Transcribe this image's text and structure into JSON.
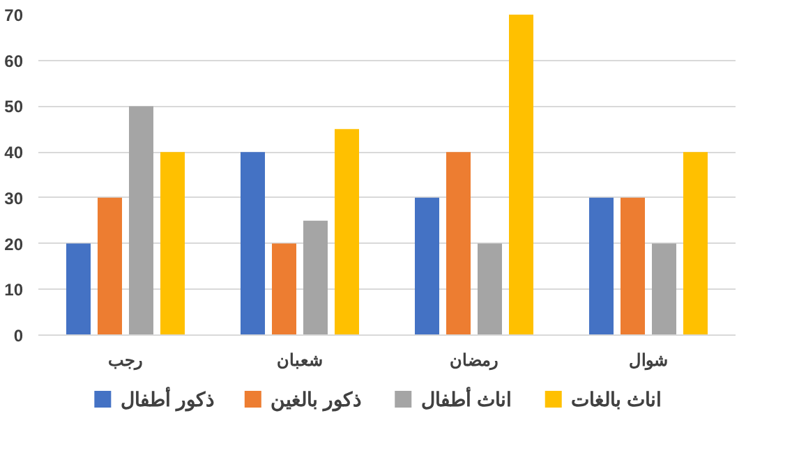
{
  "chart_data": {
    "type": "bar",
    "categories": [
      "رجب",
      "شعبان",
      "رمضان",
      "شوال"
    ],
    "series": [
      {
        "name": "ذكور أطفال",
        "color": "#4472c4",
        "values": [
          20,
          40,
          30,
          30
        ]
      },
      {
        "name": "ذكور بالغين",
        "color": "#ed7d31",
        "values": [
          30,
          20,
          40,
          30
        ]
      },
      {
        "name": "اناث أطفال",
        "color": "#a5a5a5",
        "values": [
          50,
          25,
          20,
          20
        ]
      },
      {
        "name": "اناث بالغات",
        "color": "#ffc000",
        "values": [
          40,
          45,
          70,
          40
        ]
      }
    ],
    "ylim": [
      0,
      70
    ],
    "yticks": [
      0,
      10,
      20,
      30,
      40,
      50,
      60,
      70
    ],
    "grid": "y",
    "legend": "bottom"
  }
}
